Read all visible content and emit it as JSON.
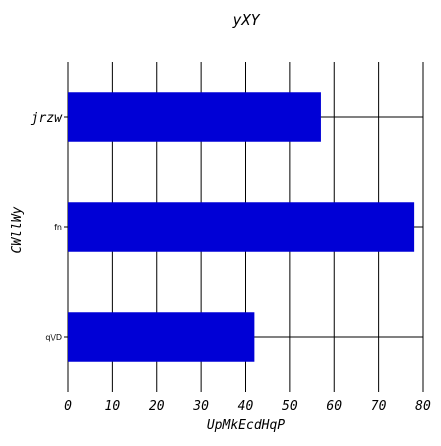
{
  "chart_data": {
    "type": "bar",
    "orientation": "horizontal",
    "title": "yXY",
    "xlabel": "UpMkEcdHqP",
    "ylabel": "CWllWy",
    "categories": [
      "jrzw",
      "fn",
      "q\\/D"
    ],
    "values": [
      57,
      78,
      42
    ],
    "xlim": [
      0,
      80
    ],
    "xticks": [
      "0",
      "10",
      "20",
      "30",
      "40",
      "50",
      "60",
      "70",
      "80"
    ],
    "grid": true,
    "bar_color": "#0000d6"
  }
}
